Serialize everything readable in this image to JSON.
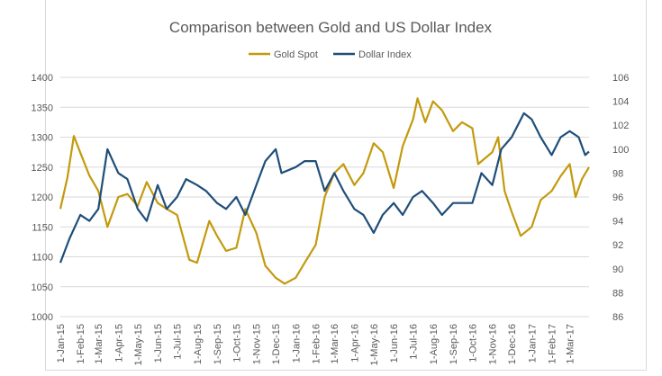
{
  "chart_data": {
    "type": "line",
    "title": "Comparison between Gold and US Dollar Index",
    "legend_position": "top",
    "grid": true,
    "xlabel": "",
    "ylabel_left": "",
    "ylabel_right": "",
    "y_left": {
      "range": [
        1000,
        1400
      ],
      "ticks": [
        "1000",
        "1050",
        "1100",
        "1150",
        "1200",
        "1250",
        "1300",
        "1350",
        "1400"
      ]
    },
    "y_right": {
      "range": [
        86,
        106
      ],
      "ticks": [
        "86",
        "88",
        "90",
        "92",
        "94",
        "96",
        "98",
        "100",
        "102",
        "104",
        "106"
      ]
    },
    "x_range": [
      "2015-01-01",
      "2017-03-31"
    ],
    "x_tick_labels": [
      "1-Jan-15",
      "1-Feb-15",
      "1-Mar-15",
      "1-Apr-15",
      "1-May-15",
      "1-Jun-15",
      "1-Jul-15",
      "1-Aug-15",
      "1-Sep-15",
      "1-Oct-15",
      "1-Nov-15",
      "1-Dec-15",
      "1-Jan-16",
      "1-Feb-16",
      "1-Mar-16",
      "1-Apr-16",
      "1-May-16",
      "1-Jun-16",
      "1-Jul-16",
      "1-Aug-16",
      "1-Sep-16",
      "1-Oct-16",
      "1-Nov-16",
      "1-Dec-16",
      "1-Jan-17",
      "1-Feb-17",
      "1-Mar-17"
    ],
    "series": [
      {
        "name": "Gold Spot",
        "axis": "left",
        "color": "#C39A0E",
        "points": [
          [
            "2015-01-01",
            1180
          ],
          [
            "2015-01-12",
            1233
          ],
          [
            "2015-01-22",
            1302
          ],
          [
            "2015-02-01",
            1274
          ],
          [
            "2015-02-15",
            1236
          ],
          [
            "2015-03-01",
            1210
          ],
          [
            "2015-03-15",
            1150
          ],
          [
            "2015-04-01",
            1200
          ],
          [
            "2015-04-15",
            1205
          ],
          [
            "2015-05-01",
            1185
          ],
          [
            "2015-05-15",
            1225
          ],
          [
            "2015-06-01",
            1190
          ],
          [
            "2015-06-15",
            1180
          ],
          [
            "2015-07-01",
            1170
          ],
          [
            "2015-07-20",
            1095
          ],
          [
            "2015-08-01",
            1090
          ],
          [
            "2015-08-20",
            1160
          ],
          [
            "2015-09-01",
            1135
          ],
          [
            "2015-09-15",
            1110
          ],
          [
            "2015-10-01",
            1115
          ],
          [
            "2015-10-15",
            1180
          ],
          [
            "2015-11-01",
            1140
          ],
          [
            "2015-11-15",
            1085
          ],
          [
            "2015-12-01",
            1065
          ],
          [
            "2015-12-15",
            1055
          ],
          [
            "2016-01-01",
            1065
          ],
          [
            "2016-01-15",
            1090
          ],
          [
            "2016-02-01",
            1120
          ],
          [
            "2016-02-15",
            1200
          ],
          [
            "2016-03-01",
            1240
          ],
          [
            "2016-03-15",
            1255
          ],
          [
            "2016-04-01",
            1220
          ],
          [
            "2016-04-15",
            1240
          ],
          [
            "2016-05-01",
            1290
          ],
          [
            "2016-05-15",
            1275
          ],
          [
            "2016-06-01",
            1215
          ],
          [
            "2016-06-15",
            1285
          ],
          [
            "2016-07-01",
            1330
          ],
          [
            "2016-07-08",
            1365
          ],
          [
            "2016-07-20",
            1325
          ],
          [
            "2016-08-01",
            1360
          ],
          [
            "2016-08-15",
            1345
          ],
          [
            "2016-09-01",
            1310
          ],
          [
            "2016-09-15",
            1325
          ],
          [
            "2016-10-01",
            1315
          ],
          [
            "2016-10-10",
            1255
          ],
          [
            "2016-11-01",
            1275
          ],
          [
            "2016-11-10",
            1300
          ],
          [
            "2016-11-20",
            1210
          ],
          [
            "2016-12-01",
            1175
          ],
          [
            "2016-12-15",
            1135
          ],
          [
            "2017-01-01",
            1150
          ],
          [
            "2017-01-15",
            1195
          ],
          [
            "2017-02-01",
            1210
          ],
          [
            "2017-02-15",
            1235
          ],
          [
            "2017-03-01",
            1255
          ],
          [
            "2017-03-10",
            1200
          ],
          [
            "2017-03-20",
            1230
          ],
          [
            "2017-03-31",
            1250
          ]
        ]
      },
      {
        "name": "Dollar Index",
        "axis": "right",
        "color": "#1F4E79",
        "points": [
          [
            "2015-01-01",
            90.5
          ],
          [
            "2015-01-15",
            92.5
          ],
          [
            "2015-02-01",
            94.5
          ],
          [
            "2015-02-15",
            94
          ],
          [
            "2015-03-01",
            95
          ],
          [
            "2015-03-15",
            100
          ],
          [
            "2015-04-01",
            98
          ],
          [
            "2015-04-15",
            97.5
          ],
          [
            "2015-05-01",
            95
          ],
          [
            "2015-05-15",
            94
          ],
          [
            "2015-06-01",
            97
          ],
          [
            "2015-06-15",
            95
          ],
          [
            "2015-07-01",
            96
          ],
          [
            "2015-07-15",
            97.5
          ],
          [
            "2015-08-01",
            97
          ],
          [
            "2015-08-15",
            96.5
          ],
          [
            "2015-09-01",
            95.5
          ],
          [
            "2015-09-15",
            95
          ],
          [
            "2015-10-01",
            96
          ],
          [
            "2015-10-15",
            94.5
          ],
          [
            "2015-11-01",
            97
          ],
          [
            "2015-11-15",
            99
          ],
          [
            "2015-12-01",
            100
          ],
          [
            "2015-12-10",
            98
          ],
          [
            "2016-01-01",
            98.5
          ],
          [
            "2016-01-15",
            99
          ],
          [
            "2016-02-01",
            99
          ],
          [
            "2016-02-15",
            96.5
          ],
          [
            "2016-03-01",
            98
          ],
          [
            "2016-03-15",
            96.5
          ],
          [
            "2016-04-01",
            95
          ],
          [
            "2016-04-15",
            94.5
          ],
          [
            "2016-05-01",
            93
          ],
          [
            "2016-05-15",
            94.5
          ],
          [
            "2016-06-01",
            95.5
          ],
          [
            "2016-06-15",
            94.5
          ],
          [
            "2016-07-01",
            96
          ],
          [
            "2016-07-15",
            96.5
          ],
          [
            "2016-08-01",
            95.5
          ],
          [
            "2016-08-15",
            94.5
          ],
          [
            "2016-09-01",
            95.5
          ],
          [
            "2016-09-15",
            95.5
          ],
          [
            "2016-10-01",
            95.5
          ],
          [
            "2016-10-15",
            98
          ],
          [
            "2016-11-01",
            97
          ],
          [
            "2016-11-15",
            100
          ],
          [
            "2016-12-01",
            101
          ],
          [
            "2016-12-20",
            103
          ],
          [
            "2017-01-01",
            102.5
          ],
          [
            "2017-01-15",
            101
          ],
          [
            "2017-02-01",
            99.5
          ],
          [
            "2017-02-15",
            101
          ],
          [
            "2017-03-01",
            101.5
          ],
          [
            "2017-03-15",
            101
          ],
          [
            "2017-03-25",
            99.5
          ],
          [
            "2017-03-31",
            99.8
          ]
        ]
      }
    ]
  }
}
